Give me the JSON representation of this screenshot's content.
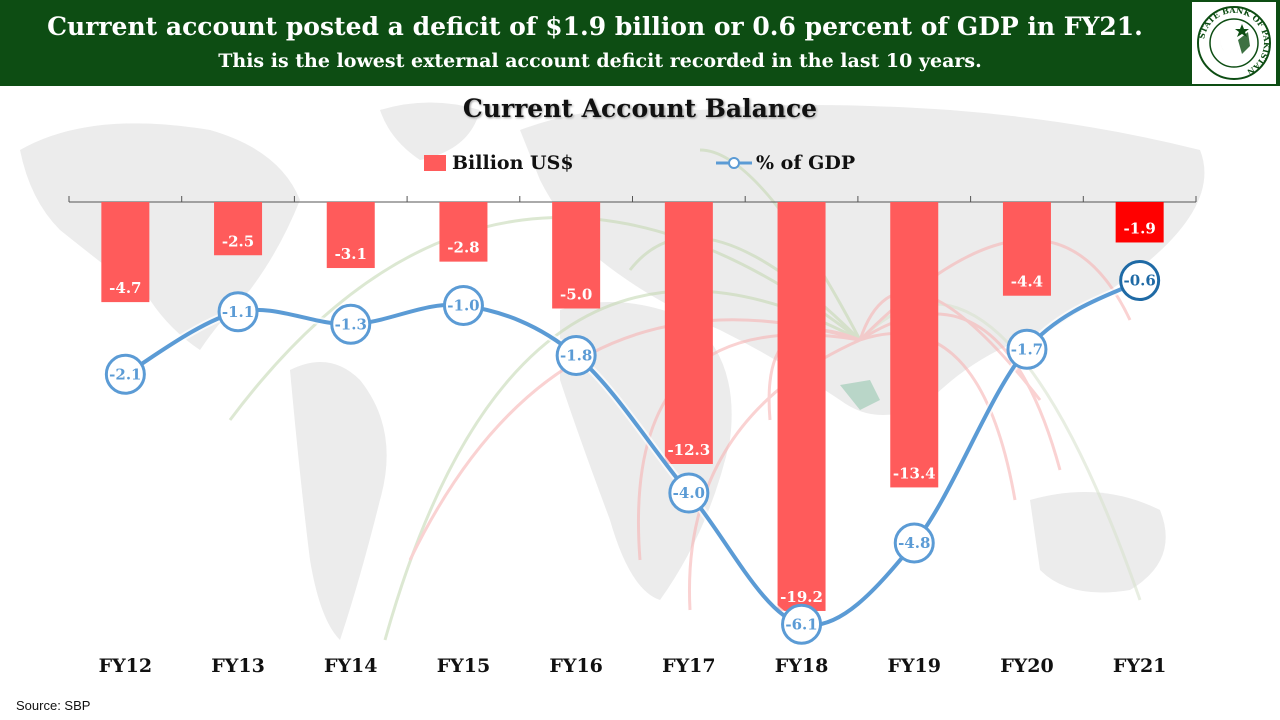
{
  "header": {
    "title": "Current account posted a deficit of $1.9 billion or 0.6 percent of GDP in FY21.",
    "subtitle": "This is the lowest external account deficit recorded in the last 10 years."
  },
  "logo": {
    "text": "STATE BANK OF PAKISTAN",
    "color": "#0d4d13"
  },
  "source": "Source: SBP",
  "colors": {
    "bar": "#ff5b5b",
    "bar_highlight": "#ff0000",
    "line": "#5b9bd5",
    "line_highlight": "#1f6aa5",
    "header_bg": "#0d4d13"
  },
  "chart_data": {
    "type": "bar",
    "title": "Current Account Balance",
    "categories": [
      "FY12",
      "FY13",
      "FY14",
      "FY15",
      "FY16",
      "FY17",
      "FY18",
      "FY19",
      "FY20",
      "FY21"
    ],
    "series": [
      {
        "name": "Billion US$",
        "type": "bar",
        "values": [
          -4.7,
          -2.5,
          -3.1,
          -2.8,
          -5.0,
          -12.3,
          -19.2,
          -13.4,
          -4.4,
          -1.9
        ]
      },
      {
        "name": "% of GDP",
        "type": "line",
        "values": [
          -2.1,
          -1.1,
          -1.3,
          -1.0,
          -1.8,
          -4.0,
          -6.1,
          -4.8,
          -1.7,
          -0.6
        ]
      }
    ],
    "legend": "top-center",
    "grid": false
  }
}
